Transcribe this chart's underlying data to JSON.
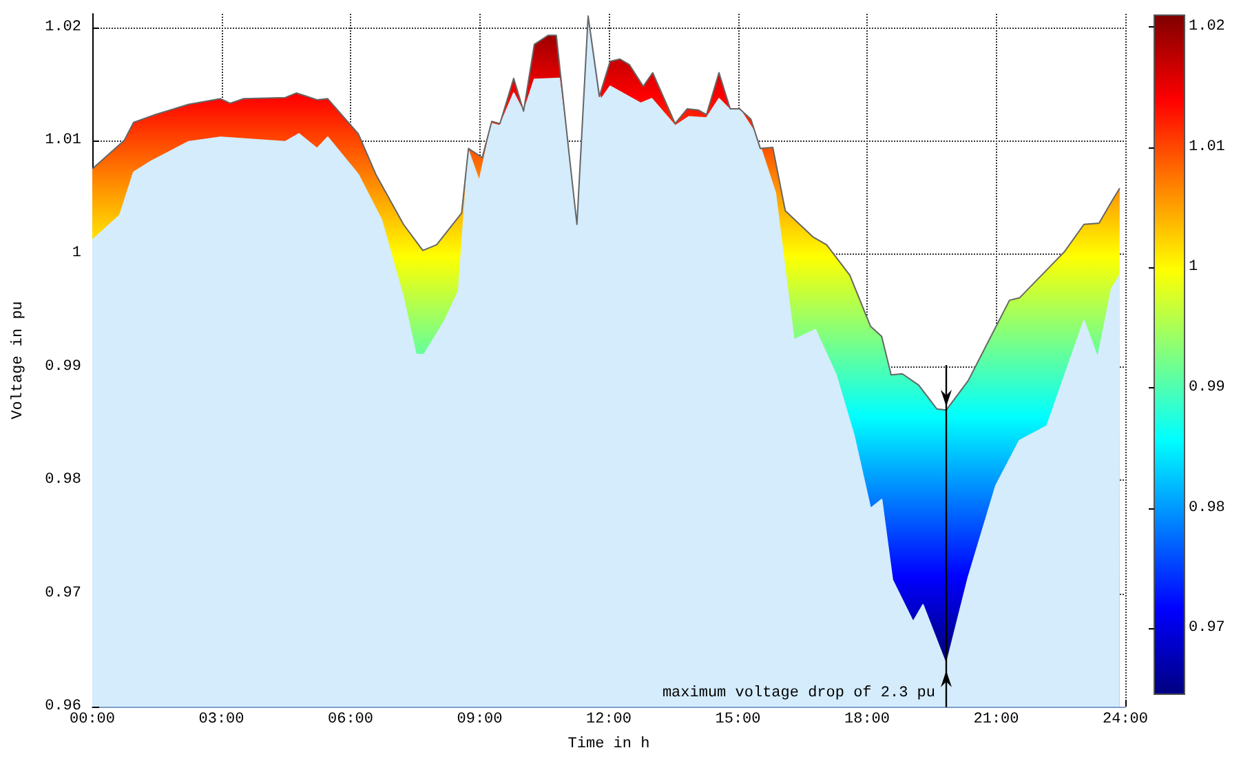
{
  "chart_data": {
    "type": "area",
    "xlabel": "Time in h",
    "ylabel": "Voltage in pu",
    "xlim": [
      0,
      24
    ],
    "ylim": [
      0.96,
      1.0212
    ],
    "xticks": [
      {
        "value": 0,
        "label": "00:00"
      },
      {
        "value": 3,
        "label": "03:00"
      },
      {
        "value": 6,
        "label": "06:00"
      },
      {
        "value": 9,
        "label": "09:00"
      },
      {
        "value": 12,
        "label": "12:00"
      },
      {
        "value": 15,
        "label": "15:00"
      },
      {
        "value": 18,
        "label": "18:00"
      },
      {
        "value": 21,
        "label": "21:00"
      },
      {
        "value": 24,
        "label": "24:00"
      }
    ],
    "yticks": [
      0.96,
      0.97,
      0.98,
      0.99,
      1,
      1.01,
      1.02
    ],
    "grid": true,
    "clim": [
      0.9645,
      1.021
    ],
    "cticks": [
      0.97,
      0.98,
      0.99,
      1,
      1.01,
      1.02
    ],
    "series": [
      {
        "color": "#d4ecfc",
        "x": [
          0,
          0.64,
          0.96,
          1.38,
          2.24,
          2.98,
          4.48,
          4.8,
          5.22,
          5.47,
          6.18,
          6.72,
          7.23,
          7.52,
          7.71,
          8.19,
          8.51,
          8.74,
          8.99,
          9.28,
          9.47,
          9.79,
          10.02,
          10.27,
          10.85,
          11.26,
          11.52,
          11.81,
          12.03,
          12.74,
          13.0,
          13.54,
          13.86,
          14.27,
          14.56,
          14.82,
          15.04,
          15.36,
          15.55,
          15.87,
          16.3,
          16.8,
          17.28,
          17.7,
          18.08,
          18.34,
          18.59,
          19.07,
          19.3,
          19.84,
          20.35,
          20.99,
          21.54,
          22.18,
          23.04,
          23.36,
          23.68,
          23.87
        ],
        "values": [
          1.0012,
          1.0034,
          1.0072,
          1.0082,
          1.0099,
          1.0103,
          1.0099,
          1.0106,
          1.0093,
          1.0103,
          1.007,
          1.003,
          0.9961,
          0.9911,
          0.9911,
          0.9941,
          0.9967,
          1.0091,
          1.0064,
          1.0115,
          1.0113,
          1.0142,
          1.0125,
          1.0154,
          1.0155,
          1.0026,
          1.0209,
          1.0136,
          1.0148,
          1.0133,
          1.0137,
          1.0113,
          1.0121,
          1.012,
          1.0137,
          1.0127,
          1.0128,
          1.0109,
          1.0091,
          1.0054,
          0.9924,
          0.9933,
          0.9893,
          0.9839,
          0.9775,
          0.9783,
          0.9712,
          0.9675,
          0.969,
          0.9637,
          0.9714,
          0.9795,
          0.9835,
          0.9848,
          0.9941,
          0.9908,
          0.9969,
          0.9981
        ]
      },
      {
        "type": "line",
        "color": "#666666",
        "x": [
          0,
          0.74,
          0.96,
          1.47,
          2.24,
          2.98,
          3.2,
          3.52,
          4.48,
          4.74,
          4.99,
          5.22,
          5.47,
          6.18,
          6.59,
          7.23,
          7.68,
          8.0,
          8.58,
          8.74,
          9.06,
          9.28,
          9.47,
          9.79,
          10.02,
          10.27,
          10.59,
          10.78,
          11.07,
          11.26,
          11.52,
          11.78,
          12.03,
          12.26,
          12.48,
          12.8,
          13.02,
          13.54,
          13.82,
          14.08,
          14.27,
          14.56,
          14.82,
          15.04,
          15.3,
          15.52,
          15.81,
          16.1,
          16.74,
          17.06,
          17.6,
          18.08,
          18.34,
          18.56,
          18.82,
          19.2,
          19.62,
          19.84,
          20.35,
          21.31,
          21.54,
          22.59,
          23.04,
          23.39,
          23.68,
          23.87
        ],
        "values": [
          1.0075,
          1.01,
          1.0116,
          1.0123,
          1.0132,
          1.0137,
          1.0133,
          1.0137,
          1.0138,
          1.0142,
          1.0139,
          1.0136,
          1.0137,
          1.0106,
          1.007,
          1.0026,
          1.0003,
          1.0008,
          1.0036,
          1.0093,
          1.0085,
          1.0117,
          1.0115,
          1.0155,
          1.0126,
          1.0185,
          1.0193,
          1.0193,
          1.0091,
          1.0026,
          1.021,
          1.0139,
          1.017,
          1.0172,
          1.0167,
          1.0148,
          1.016,
          1.0115,
          1.0128,
          1.0127,
          1.0123,
          1.016,
          1.0128,
          1.0128,
          1.0119,
          1.0093,
          1.0094,
          1.0038,
          1.0015,
          1.0008,
          0.9981,
          0.9936,
          0.9927,
          0.9893,
          0.9894,
          0.9884,
          0.9863,
          0.9862,
          0.9888,
          0.9959,
          0.9961,
          1.0002,
          1.0026,
          1.0027,
          1.0046,
          1.0058
        ]
      }
    ],
    "annotations": [
      {
        "text": "maximum voltage drop of 2.3 pu",
        "x": 19.84,
        "y": 0.9637
      }
    ]
  }
}
